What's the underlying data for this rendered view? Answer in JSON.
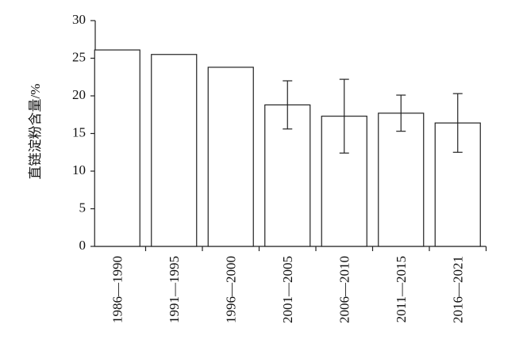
{
  "chart_data": {
    "type": "bar",
    "y_label": "直链淀粉含量/%",
    "categories": [
      "1986—1990",
      "1991—1995",
      "1996—2000",
      "2001—2005",
      "2006—2010",
      "2011—2015",
      "2016—2021"
    ],
    "values": [
      26.1,
      25.5,
      23.8,
      18.8,
      17.3,
      17.7,
      16.4
    ],
    "errors": [
      null,
      null,
      null,
      3.2,
      4.9,
      2.4,
      3.9
    ],
    "color": "#ffffff",
    "ylim": [
      0,
      30
    ],
    "yticks": [
      0,
      5,
      10,
      15,
      20,
      25,
      30
    ],
    "grid": false
  }
}
